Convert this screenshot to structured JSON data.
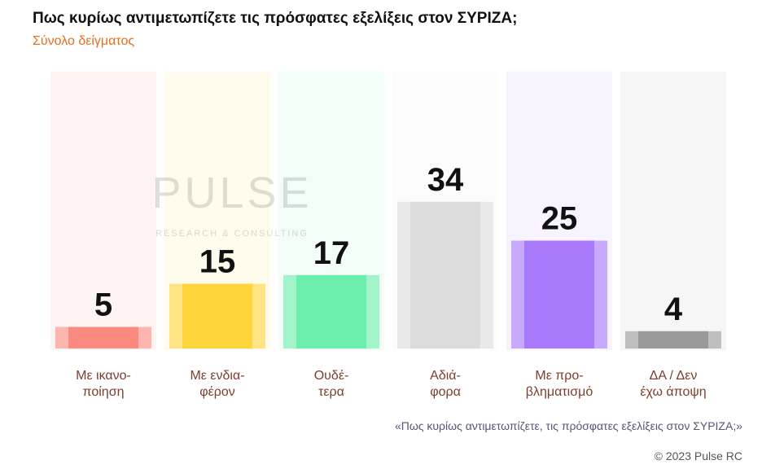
{
  "chart_data": {
    "type": "bar",
    "title": "Πως κυρίως αντιμετωπίζετε τις πρόσφατες εξελίξεις στον ΣΥΡΙΖΑ;",
    "subtitle": "Σύνολο δείγματος",
    "categories": [
      "Με ικανο-\nποίηση",
      "Με ενδια-\nφέρον",
      "Ουδέ-\nτερα",
      "Αδιά-\nφορα",
      "Με προ-\nβληματισμό",
      "ΔΑ / Δεν\nέχω άποψη"
    ],
    "values": [
      5,
      15,
      17,
      34,
      25,
      4
    ],
    "colors": [
      "#fa8a80",
      "#fdd53b",
      "#6ceead",
      "#dcdcdc",
      "#a879fb",
      "#999999"
    ],
    "watermark": {
      "title": "PULSE",
      "subtitle": "RESEARCH & CONSULTING"
    },
    "note": "«Πως κυρίως αντιμετωπίζετε, τις πρόσφατες εξελίξεις στον ΣΥΡΙΖΑ;»",
    "copyright": "© 2023 Pulse RC"
  }
}
